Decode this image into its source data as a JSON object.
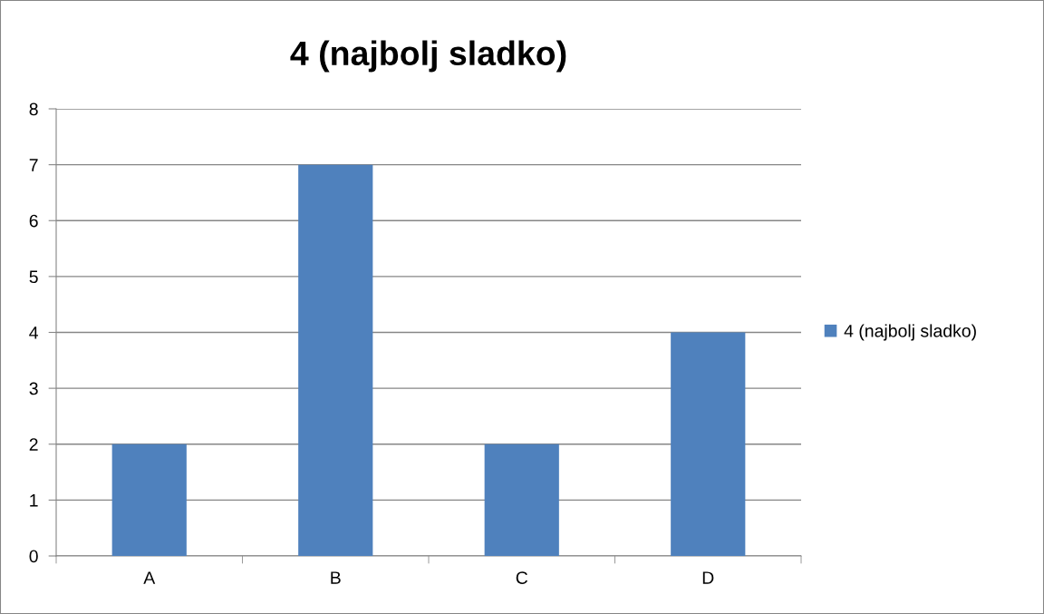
{
  "chart_data": {
    "type": "bar",
    "title": "4 (najbolj sladko)",
    "categories": [
      "A",
      "B",
      "C",
      "D"
    ],
    "series": [
      {
        "name": "4 (najbolj sladko)",
        "color": "#4f81bd",
        "values": [
          2,
          7,
          2,
          4
        ]
      }
    ],
    "ylim": [
      0,
      8
    ],
    "yticks": [
      0,
      1,
      2,
      3,
      4,
      5,
      6,
      7,
      8
    ],
    "grid": "y",
    "legend": "right"
  }
}
